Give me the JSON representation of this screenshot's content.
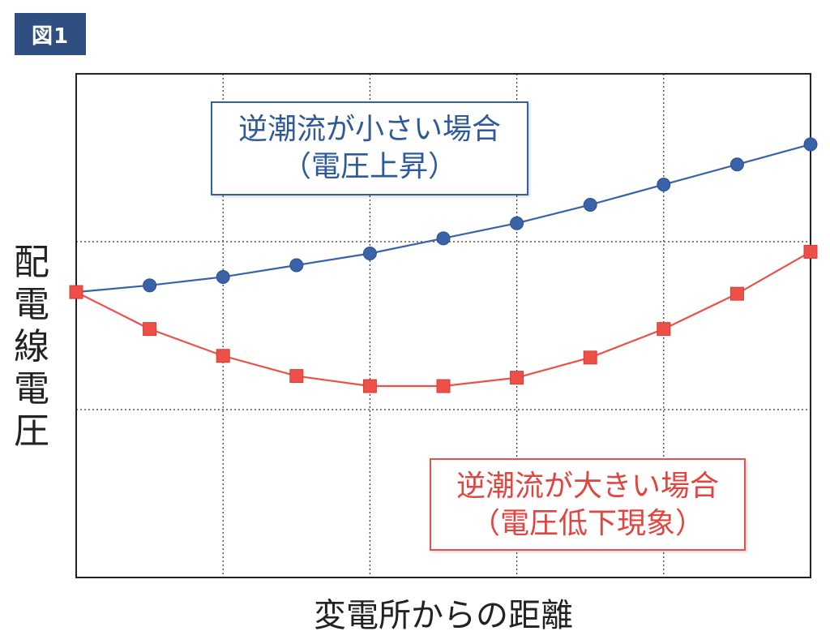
{
  "figure_label": "図1",
  "chart_data": {
    "type": "line",
    "xlabel": "変電所からの距離",
    "ylabel": "配電線電圧",
    "x": [
      0,
      1,
      2,
      3,
      4,
      5,
      6,
      7,
      8,
      9,
      10
    ],
    "xlim": [
      0,
      10
    ],
    "ylim": [
      0,
      3
    ],
    "grid": true,
    "series": [
      {
        "name": "逆潮流が小さい場合（電圧上昇）",
        "color": "#3a62a8",
        "marker": "circle",
        "values": [
          1.7,
          1.74,
          1.79,
          1.86,
          1.93,
          2.02,
          2.11,
          2.22,
          2.34,
          2.46,
          2.58
        ]
      },
      {
        "name": "逆潮流が大きい場合（電圧低下現象）",
        "color": "#ec5048",
        "marker": "square",
        "values": [
          1.7,
          1.48,
          1.32,
          1.2,
          1.14,
          1.14,
          1.19,
          1.31,
          1.48,
          1.69,
          1.94
        ]
      }
    ],
    "annotations": [
      {
        "id": "small",
        "line1": "逆潮流が小さい場合",
        "line2": "（電圧上昇）",
        "color": "#2f5a9a"
      },
      {
        "id": "large",
        "line1": "逆潮流が大きい場合",
        "line2": "（電圧低下現象）",
        "color": "#e0453f"
      }
    ]
  }
}
